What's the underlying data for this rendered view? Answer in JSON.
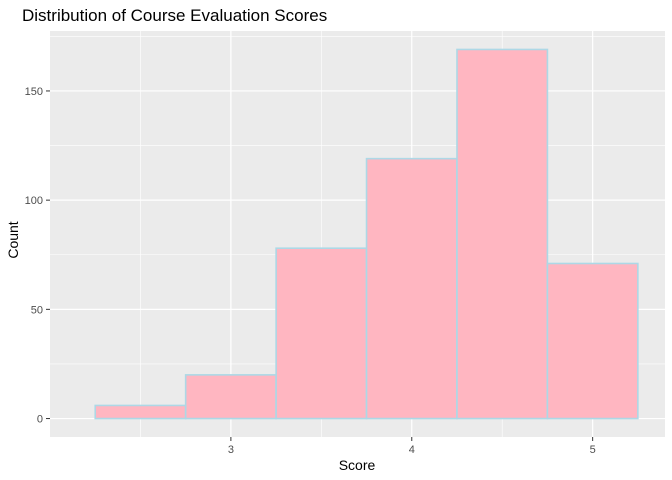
{
  "chart_data": {
    "type": "bar",
    "title": "Distribution of Course Evaluation Scores",
    "xlabel": "Score",
    "ylabel": "Count",
    "bins": [
      {
        "x0": 2.25,
        "x1": 2.75,
        "count": 6
      },
      {
        "x0": 2.75,
        "x1": 3.25,
        "count": 20
      },
      {
        "x0": 3.25,
        "x1": 3.75,
        "count": 78
      },
      {
        "x0": 3.75,
        "x1": 4.25,
        "count": 119
      },
      {
        "x0": 4.25,
        "x1": 4.75,
        "count": 169
      },
      {
        "x0": 4.75,
        "x1": 5.25,
        "count": 71
      }
    ],
    "xlim": [
      2.0,
      5.4
    ],
    "ylim": [
      -8.45,
      177.45
    ],
    "x_ticks": [
      3,
      4,
      5
    ],
    "x_tick_labels": [
      "3",
      "4",
      "5"
    ],
    "x_minor_ticks": [
      2.5,
      3.5,
      4.5
    ],
    "y_ticks": [
      0,
      50,
      100,
      150
    ],
    "y_tick_labels": [
      "0",
      "50",
      "100",
      "150"
    ],
    "y_minor_ticks": [
      25,
      75,
      125,
      175
    ],
    "grid": true,
    "colors": {
      "panel_background": "#EBEBEB",
      "grid_line": "#FFFFFF",
      "bar_fill": "#FFB6C1",
      "bar_outline": "#ADD8E6"
    }
  }
}
